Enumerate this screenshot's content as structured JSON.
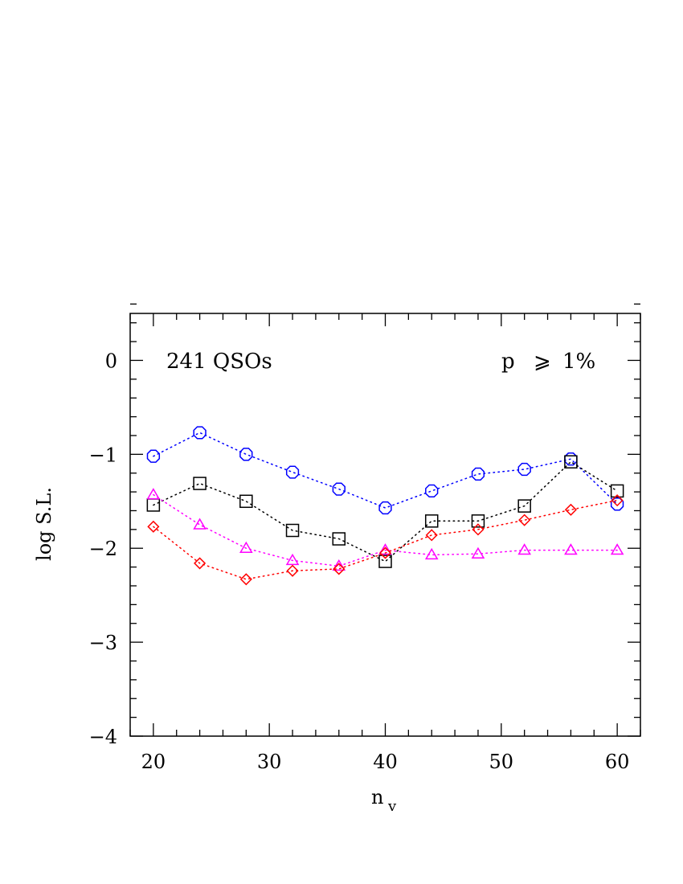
{
  "chart_data": {
    "type": "scatter",
    "xlabel_main": "n",
    "xlabel_sub": "v",
    "ylabel": "log S.L.",
    "xlim": [
      18,
      62
    ],
    "ylim": [
      -4,
      0.5
    ],
    "xticks": [
      20,
      30,
      40,
      50,
      60
    ],
    "yticks": [
      -4,
      -3,
      -2,
      -1,
      0
    ],
    "xtick_labels": [
      "20",
      "30",
      "40",
      "50",
      "60"
    ],
    "ytick_labels": [
      "−4",
      "−3",
      "−2",
      "−1",
      "0"
    ],
    "annotations": {
      "left": "241  QSOs",
      "right_p": "p",
      "right_geq": "⩾",
      "right_value": "1%"
    },
    "x": [
      20,
      24,
      28,
      32,
      36,
      40,
      44,
      48,
      52,
      56,
      60
    ],
    "series": [
      {
        "marker": "circle",
        "color": "#0000ff",
        "values": [
          -1.02,
          -0.77,
          -1.0,
          -1.19,
          -1.37,
          -1.57,
          -1.39,
          -1.21,
          -1.16,
          -1.05,
          -1.53
        ]
      },
      {
        "marker": "square",
        "color": "#000000",
        "values": [
          -1.54,
          -1.31,
          -1.5,
          -1.81,
          -1.9,
          -2.14,
          -1.71,
          -1.71,
          -1.55,
          -1.08,
          -1.39
        ]
      },
      {
        "marker": "triangle",
        "color": "#ff00ff",
        "values": [
          -1.43,
          -1.75,
          -2.0,
          -2.13,
          -2.19,
          -2.02,
          -2.07,
          -2.06,
          -2.02,
          -2.02,
          -2.02
        ]
      },
      {
        "marker": "diamond",
        "color": "#ff0000",
        "values": [
          -1.77,
          -2.16,
          -2.33,
          -2.24,
          -2.22,
          -2.05,
          -1.86,
          -1.8,
          -1.7,
          -1.59,
          -1.49
        ]
      }
    ]
  }
}
